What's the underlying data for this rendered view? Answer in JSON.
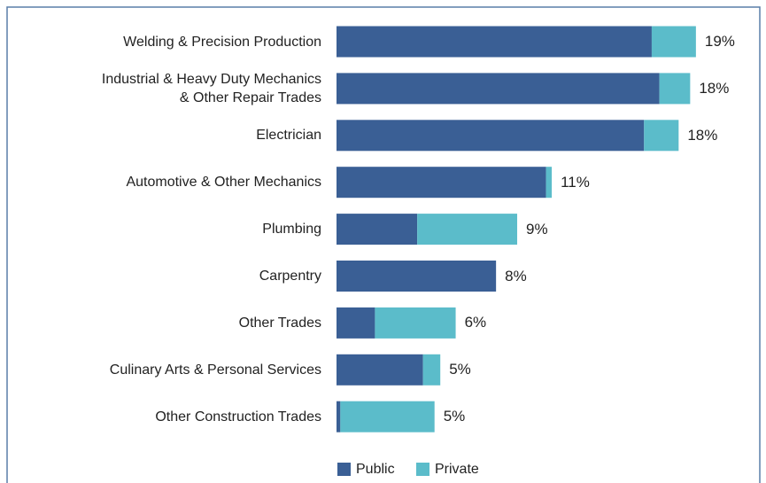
{
  "chart_data": {
    "type": "stacked_barh",
    "categories": [
      "Welding & Precision Production",
      "Industrial & Heavy Duty Mechanics\n& Other Repair Trades",
      "Electrician",
      "Automotive & Other Mechanics",
      "Plumbing",
      "Carpentry",
      "Other Trades",
      "Culinary Arts & Personal Services",
      "Other Construction Trades"
    ],
    "series": [
      {
        "name": "Public",
        "color": "#3a5f95",
        "values": [
          16.4,
          16.8,
          16.0,
          10.9,
          4.2,
          8.3,
          2.0,
          4.5,
          0.2
        ]
      },
      {
        "name": "Private",
        "color": "#5bbcca",
        "values": [
          2.3,
          1.6,
          1.8,
          0.3,
          5.2,
          0,
          4.2,
          0.9,
          4.9
        ]
      }
    ],
    "total_labels": [
      "19%",
      "18%",
      "18%",
      "11%",
      "9%",
      "8%",
      "6%",
      "5%",
      "5%"
    ],
    "xlim": [
      0,
      22.3
    ]
  }
}
